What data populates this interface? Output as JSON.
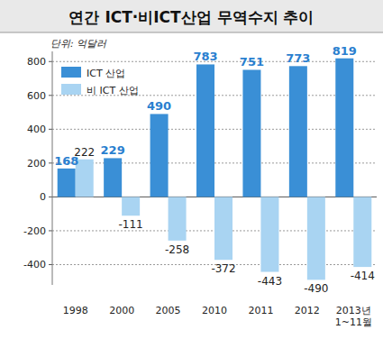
{
  "chart_data": {
    "type": "bar",
    "title": "연간 ICT·비ICT산업 무역수지 추이",
    "y_label": "단위: 억달러",
    "categories": [
      "1998",
      "2000",
      "2005",
      "2010",
      "2011",
      "2012",
      "2013년 1~11월"
    ],
    "series": [
      {
        "name": "ICT 산업",
        "color": "#3a8fd6",
        "values": [
          168,
          229,
          490,
          783,
          751,
          773,
          819
        ]
      },
      {
        "name": "비 ICT 산업",
        "color": "#a9d4f2",
        "values": [
          222,
          -111,
          -258,
          -372,
          -443,
          -490,
          -414
        ]
      }
    ],
    "ylim": [
      -520,
      860
    ],
    "yticks": [
      -400,
      -200,
      0,
      200,
      400,
      600,
      800
    ],
    "grid": true,
    "legend": "upper left",
    "data_labels": true
  }
}
